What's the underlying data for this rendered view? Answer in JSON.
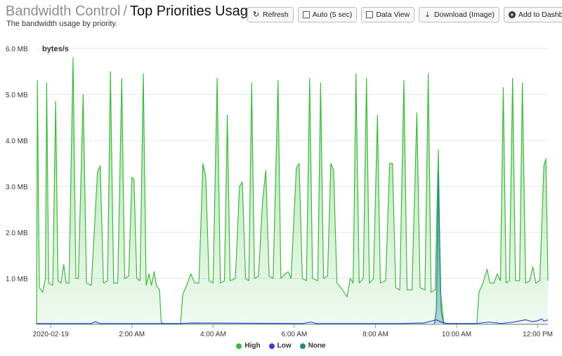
{
  "header": {
    "breadcrumb_parent": "Bandwidth Control",
    "separator": "/",
    "title": "Top Priorities Usage",
    "subtitle": "The bandwidth usage by priority."
  },
  "toolbar": {
    "refresh_label": "Refresh",
    "auto_label": "Auto (5 sec)",
    "data_view_label": "Data View",
    "download_label": "Download (Image)",
    "add_dashboard_label": "Add to Dashbo"
  },
  "chart_data": {
    "type": "area",
    "ylabel": "bytes/s",
    "ylim": [
      0,
      6.0
    ],
    "y_unit": "MB",
    "y_ticks": [
      "1.0 MB",
      "2.0 MB",
      "3.0 MB",
      "4.0 MB",
      "5.0 MB",
      "6.0 MB"
    ],
    "x_ticks": [
      {
        "t": 0,
        "label": "2020-02-19"
      },
      {
        "t": 2,
        "label": "2:00 AM"
      },
      {
        "t": 4,
        "label": "4:00 AM"
      },
      {
        "t": 6,
        "label": "6:00 AM"
      },
      {
        "t": 8,
        "label": "8:00 AM"
      },
      {
        "t": 10,
        "label": "10:00 AM"
      },
      {
        "t": 12,
        "label": "12:00 PM"
      }
    ],
    "x_range_hours": [
      -0.35,
      12.25
    ],
    "legend_position": "bottom",
    "series": [
      {
        "name": "High",
        "color": "#3cb93c",
        "points": [
          [
            -0.35,
            0.0
          ],
          [
            -0.33,
            5.3
          ],
          [
            -0.28,
            0.8
          ],
          [
            -0.2,
            0.7
          ],
          [
            -0.13,
            1.0
          ],
          [
            -0.1,
            5.25
          ],
          [
            -0.05,
            0.9
          ],
          [
            0.05,
            0.85
          ],
          [
            0.12,
            4.85
          ],
          [
            0.18,
            0.95
          ],
          [
            0.25,
            0.9
          ],
          [
            0.32,
            1.3
          ],
          [
            0.38,
            0.9
          ],
          [
            0.45,
            0.9
          ],
          [
            0.55,
            5.8
          ],
          [
            0.62,
            1.0
          ],
          [
            0.68,
            1.0
          ],
          [
            0.8,
            5.0
          ],
          [
            0.88,
            0.9
          ],
          [
            1.0,
            0.85
          ],
          [
            1.15,
            3.3
          ],
          [
            1.22,
            3.45
          ],
          [
            1.3,
            0.9
          ],
          [
            1.4,
            0.95
          ],
          [
            1.47,
            5.5
          ],
          [
            1.55,
            0.9
          ],
          [
            1.65,
            0.9
          ],
          [
            1.75,
            5.35
          ],
          [
            1.82,
            1.0
          ],
          [
            1.92,
            1.05
          ],
          [
            2.0,
            3.2
          ],
          [
            2.05,
            3.15
          ],
          [
            2.12,
            1.0
          ],
          [
            2.2,
            0.95
          ],
          [
            2.28,
            5.45
          ],
          [
            2.35,
            0.85
          ],
          [
            2.42,
            1.1
          ],
          [
            2.48,
            0.85
          ],
          [
            2.55,
            1.15
          ],
          [
            2.6,
            0.85
          ],
          [
            2.68,
            0.75
          ],
          [
            2.72,
            0.05
          ],
          [
            2.78,
            0.02
          ],
          [
            3.2,
            0.02
          ],
          [
            3.25,
            0.65
          ],
          [
            3.35,
            0.85
          ],
          [
            3.45,
            1.1
          ],
          [
            3.55,
            0.9
          ],
          [
            3.65,
            0.9
          ],
          [
            3.75,
            3.5
          ],
          [
            3.82,
            3.2
          ],
          [
            3.9,
            0.95
          ],
          [
            4.0,
            0.9
          ],
          [
            4.1,
            5.35
          ],
          [
            4.18,
            0.9
          ],
          [
            4.28,
            0.95
          ],
          [
            4.35,
            4.55
          ],
          [
            4.42,
            0.95
          ],
          [
            4.55,
            1.0
          ],
          [
            4.65,
            3.0
          ],
          [
            4.72,
            3.1
          ],
          [
            4.8,
            1.0
          ],
          [
            4.88,
            0.95
          ],
          [
            4.95,
            5.25
          ],
          [
            5.02,
            1.0
          ],
          [
            5.12,
            1.05
          ],
          [
            5.22,
            2.7
          ],
          [
            5.3,
            3.35
          ],
          [
            5.38,
            1.05
          ],
          [
            5.48,
            1.0
          ],
          [
            5.6,
            5.3
          ],
          [
            5.67,
            1.0
          ],
          [
            5.78,
            1.1
          ],
          [
            5.85,
            1.15
          ],
          [
            5.92,
            1.0
          ],
          [
            6.05,
            3.4
          ],
          [
            6.12,
            3.5
          ],
          [
            6.2,
            1.0
          ],
          [
            6.3,
            0.95
          ],
          [
            6.38,
            5.35
          ],
          [
            6.45,
            1.0
          ],
          [
            6.58,
            0.95
          ],
          [
            6.65,
            5.25
          ],
          [
            6.72,
            1.0
          ],
          [
            6.82,
            1.05
          ],
          [
            6.9,
            3.5
          ],
          [
            6.97,
            3.35
          ],
          [
            7.05,
            0.9
          ],
          [
            7.15,
            0.8
          ],
          [
            7.3,
            0.6
          ],
          [
            7.38,
            1.0
          ],
          [
            7.45,
            0.9
          ],
          [
            7.52,
            5.45
          ],
          [
            7.6,
            0.9
          ],
          [
            7.7,
            1.0
          ],
          [
            7.78,
            5.35
          ],
          [
            7.85,
            0.9
          ],
          [
            7.95,
            1.0
          ],
          [
            8.05,
            4.55
          ],
          [
            8.12,
            0.9
          ],
          [
            8.25,
            0.95
          ],
          [
            8.35,
            3.5
          ],
          [
            8.42,
            3.5
          ],
          [
            8.5,
            0.8
          ],
          [
            8.6,
            0.75
          ],
          [
            8.7,
            5.3
          ],
          [
            8.78,
            0.75
          ],
          [
            8.9,
            0.75
          ],
          [
            9.02,
            4.6
          ],
          [
            9.1,
            0.8
          ],
          [
            9.22,
            0.75
          ],
          [
            9.3,
            5.45
          ],
          [
            9.37,
            0.7
          ],
          [
            9.47,
            0.75
          ],
          [
            9.55,
            3.8
          ],
          [
            9.6,
            0.75
          ],
          [
            9.68,
            0.05
          ],
          [
            9.75,
            0.02
          ],
          [
            10.5,
            0.02
          ],
          [
            10.55,
            0.7
          ],
          [
            10.65,
            0.9
          ],
          [
            10.75,
            1.2
          ],
          [
            10.82,
            0.9
          ],
          [
            10.92,
            0.9
          ],
          [
            11.0,
            1.1
          ],
          [
            11.08,
            0.95
          ],
          [
            11.15,
            5.15
          ],
          [
            11.22,
            0.9
          ],
          [
            11.3,
            0.95
          ],
          [
            11.38,
            5.35
          ],
          [
            11.45,
            0.95
          ],
          [
            11.55,
            0.95
          ],
          [
            11.62,
            5.25
          ],
          [
            11.7,
            0.9
          ],
          [
            11.8,
            0.95
          ],
          [
            11.88,
            1.25
          ],
          [
            11.95,
            0.9
          ],
          [
            12.05,
            0.95
          ],
          [
            12.15,
            3.45
          ],
          [
            12.2,
            3.6
          ],
          [
            12.25,
            0.95
          ]
        ]
      },
      {
        "name": "Low",
        "color": "#3c3cd8",
        "points": [
          [
            -0.35,
            0.02
          ],
          [
            1.0,
            0.02
          ],
          [
            1.1,
            0.06
          ],
          [
            1.2,
            0.02
          ],
          [
            3.2,
            0.02
          ],
          [
            3.5,
            0.03
          ],
          [
            6.2,
            0.02
          ],
          [
            6.4,
            0.05
          ],
          [
            6.55,
            0.02
          ],
          [
            8.6,
            0.02
          ],
          [
            9.2,
            0.03
          ],
          [
            9.5,
            0.1
          ],
          [
            9.62,
            0.05
          ],
          [
            9.75,
            0.02
          ],
          [
            10.5,
            0.02
          ],
          [
            10.8,
            0.05
          ],
          [
            11.1,
            0.02
          ],
          [
            11.4,
            0.05
          ],
          [
            11.7,
            0.1
          ],
          [
            11.85,
            0.06
          ],
          [
            12.0,
            0.08
          ],
          [
            12.1,
            0.12
          ],
          [
            12.15,
            0.07
          ],
          [
            12.25,
            0.1
          ]
        ]
      },
      {
        "name": "None",
        "color": "#238a8a",
        "points": [
          [
            -0.35,
            0.0
          ],
          [
            9.45,
            0.0
          ],
          [
            9.5,
            0.3
          ],
          [
            9.55,
            3.3
          ],
          [
            9.62,
            0.3
          ],
          [
            9.68,
            0.0
          ],
          [
            12.25,
            0.0
          ]
        ]
      }
    ]
  }
}
